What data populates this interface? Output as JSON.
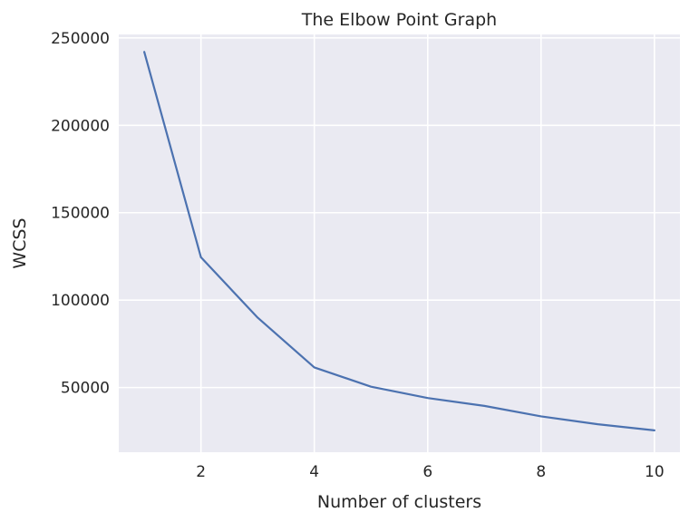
{
  "chart_data": {
    "type": "line",
    "title": "The Elbow Point Graph",
    "xlabel": "Number of clusters",
    "ylabel": "WCSS",
    "x": [
      1,
      2,
      3,
      4,
      5,
      6,
      7,
      8,
      9,
      10
    ],
    "series": [
      {
        "values": [
          242000,
          124500,
          90000,
          61500,
          50500,
          44000,
          39500,
          33500,
          29000,
          25500
        ],
        "color": "#4c72b0"
      }
    ],
    "xlim": [
      0.55,
      10.45
    ],
    "ylim": [
      13000,
      252000
    ],
    "xticks": [
      2,
      4,
      6,
      8,
      10
    ],
    "xtick_labels": [
      "2",
      "4",
      "6",
      "8",
      "10"
    ],
    "yticks": [
      50000,
      100000,
      150000,
      200000,
      250000
    ],
    "ytick_labels": [
      "50000",
      "100000",
      "150000",
      "200000",
      "250000"
    ],
    "grid": true,
    "background": "#eaeaf2",
    "grid_color": "#ffffff"
  }
}
